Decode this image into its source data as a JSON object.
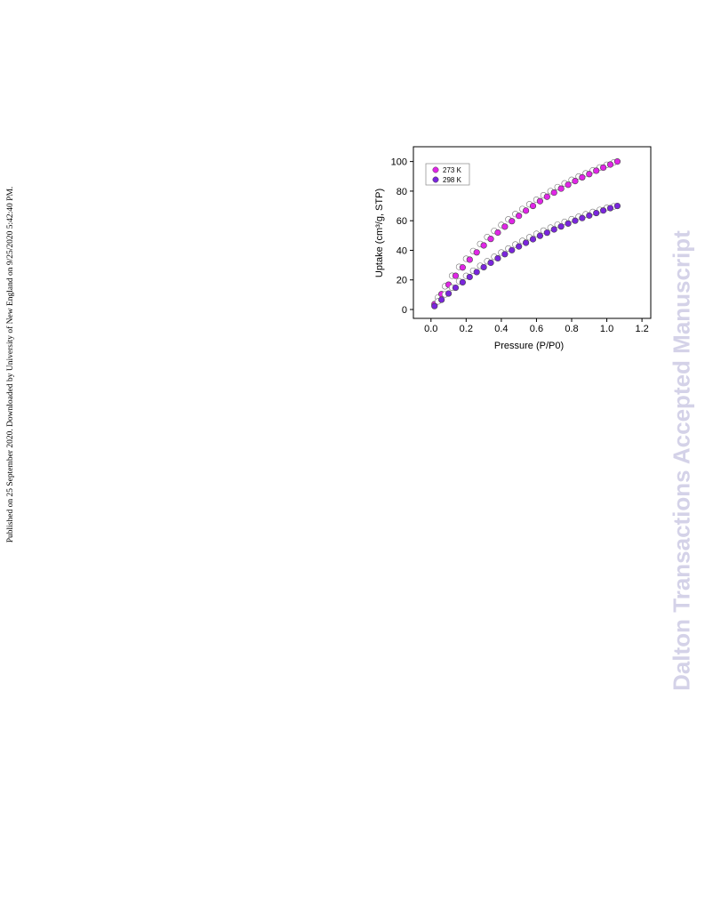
{
  "page": {
    "side_note": "Published on 25 September 2020. Downloaded by University of New England on 9/25/2020 5:42:40 PM.",
    "watermark": "Dalton Transactions Accepted Manuscript"
  },
  "chart_data": {
    "type": "scatter",
    "x_label": "Pressure (P/P0)",
    "y_label": "Uptake (cm³/g, STP)",
    "xlim": [
      -0.1,
      1.25
    ],
    "ylim": [
      -6,
      110
    ],
    "xticks": [
      {
        "value": 0,
        "label": "0.0"
      },
      {
        "value": 0.2,
        "label": "0.2"
      },
      {
        "value": 0.4,
        "label": "0.4"
      },
      {
        "value": 0.6,
        "label": "0.6"
      },
      {
        "value": 0.8,
        "label": "0.8"
      },
      {
        "value": 1,
        "label": "1.0"
      },
      {
        "value": 1.2,
        "label": "1.2"
      }
    ],
    "yticks": [
      0,
      20,
      40,
      60,
      80,
      100
    ],
    "legend": "upper left",
    "series": [
      {
        "name": "273 K",
        "color": "#e026e6",
        "adsorption": {
          "x": [
            0.02,
            0.06,
            0.1,
            0.14,
            0.18,
            0.22,
            0.26,
            0.3,
            0.34,
            0.38,
            0.42,
            0.46,
            0.5,
            0.54,
            0.58,
            0.62,
            0.66,
            0.7,
            0.74,
            0.78,
            0.82,
            0.86,
            0.9,
            0.94,
            0.98,
            1.02,
            1.06
          ],
          "values": [
            3.6,
            10.4,
            16.8,
            22.8,
            28.4,
            33.7,
            38.6,
            43.3,
            47.7,
            52.0,
            56.0,
            59.7,
            63.3,
            66.8,
            70.0,
            73.2,
            76.2,
            79.0,
            81.7,
            84.3,
            86.8,
            89.3,
            91.5,
            93.8,
            95.9,
            98.0,
            100.0
          ]
        },
        "desorption": {
          "x": [
            0.04,
            0.08,
            0.12,
            0.16,
            0.2,
            0.24,
            0.28,
            0.32,
            0.36,
            0.4,
            0.44,
            0.48,
            0.52,
            0.56,
            0.6,
            0.64,
            0.68,
            0.72,
            0.76,
            0.8,
            0.84,
            0.88,
            0.92,
            0.96,
            1.0,
            1.04
          ],
          "values": [
            8.1,
            15.7,
            22.8,
            28.8,
            34.3,
            39.5,
            44.3,
            48.9,
            53.1,
            57.1,
            60.9,
            64.5,
            67.9,
            71.1,
            74.2,
            77.2,
            80.0,
            82.7,
            85.2,
            87.6,
            89.9,
            92.0,
            94.0,
            96.0,
            97.8,
            99.4
          ]
        }
      },
      {
        "name": "298 K",
        "color": "#7a26dc",
        "adsorption": {
          "x": [
            0.02,
            0.06,
            0.1,
            0.14,
            0.18,
            0.22,
            0.26,
            0.3,
            0.34,
            0.38,
            0.42,
            0.46,
            0.5,
            0.54,
            0.58,
            0.62,
            0.66,
            0.7,
            0.74,
            0.78,
            0.82,
            0.86,
            0.9,
            0.94,
            0.98,
            1.02,
            1.06
          ],
          "values": [
            2.3,
            6.6,
            10.8,
            14.7,
            18.4,
            22.0,
            25.3,
            28.6,
            31.6,
            34.6,
            37.4,
            40.1,
            42.6,
            45.1,
            47.5,
            49.8,
            51.9,
            54.1,
            56.1,
            58.1,
            60.0,
            61.8,
            63.5,
            65.2,
            66.9,
            68.5,
            70.0
          ]
        },
        "desorption": {
          "x": [
            0.04,
            0.08,
            0.12,
            0.16,
            0.2,
            0.24,
            0.28,
            0.32,
            0.36,
            0.4,
            0.44,
            0.48,
            0.52,
            0.56,
            0.6,
            0.64,
            0.68,
            0.72,
            0.76,
            0.8,
            0.84,
            0.88,
            0.92,
            0.96,
            1.0,
            1.04
          ],
          "values": [
            5.5,
            10.2,
            14.8,
            19.1,
            22.7,
            26.2,
            29.5,
            32.6,
            35.6,
            38.5,
            41.2,
            43.9,
            46.4,
            48.8,
            51.1,
            53.3,
            55.3,
            57.3,
            59.2,
            61.0,
            62.7,
            64.3,
            65.9,
            67.3,
            68.7,
            69.7
          ]
        }
      }
    ]
  }
}
